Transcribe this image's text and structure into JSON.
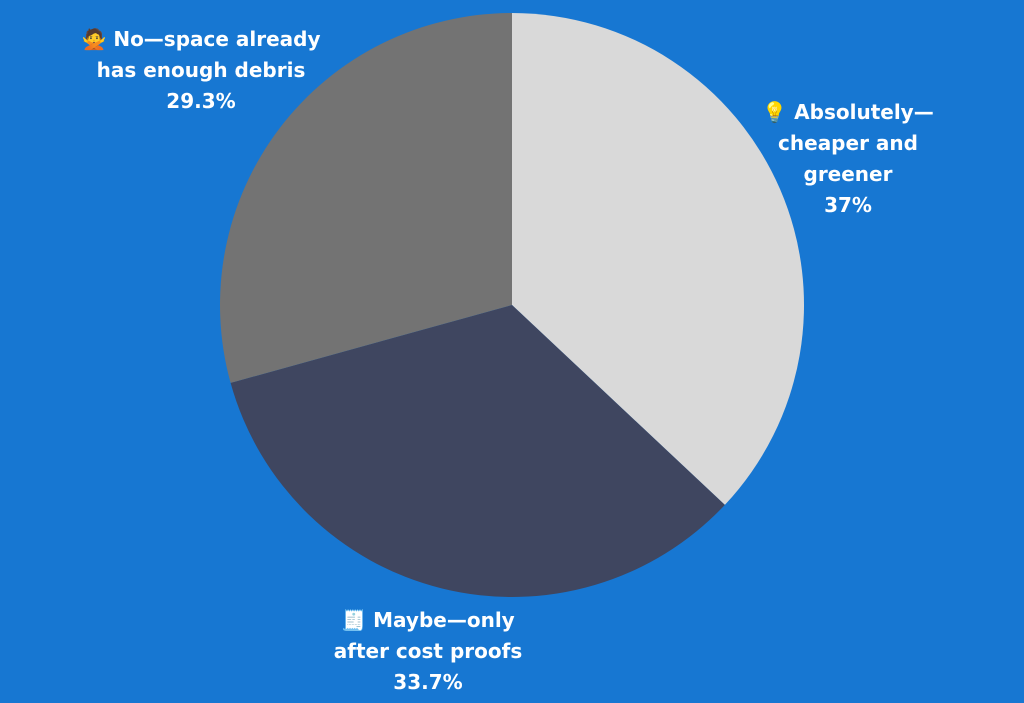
{
  "chart_data": {
    "type": "pie",
    "background_color": "#1777D2",
    "label_color": "#FFFFFF",
    "slices": [
      {
        "emoji": "💡",
        "label_lines": [
          "Absolutely—",
          "cheaper and",
          "greener"
        ],
        "value": 37,
        "value_label": "37%",
        "color": "#D9D9D9"
      },
      {
        "emoji": "🧾",
        "label_lines": [
          "Maybe—only",
          "after cost proofs"
        ],
        "value": 33.7,
        "value_label": "33.7%",
        "color": "#3F4660"
      },
      {
        "emoji": "🙅",
        "label_lines": [
          "No—space already",
          "has enough debris"
        ],
        "value": 29.3,
        "value_label": "29.3%",
        "color": "#737373"
      }
    ]
  }
}
